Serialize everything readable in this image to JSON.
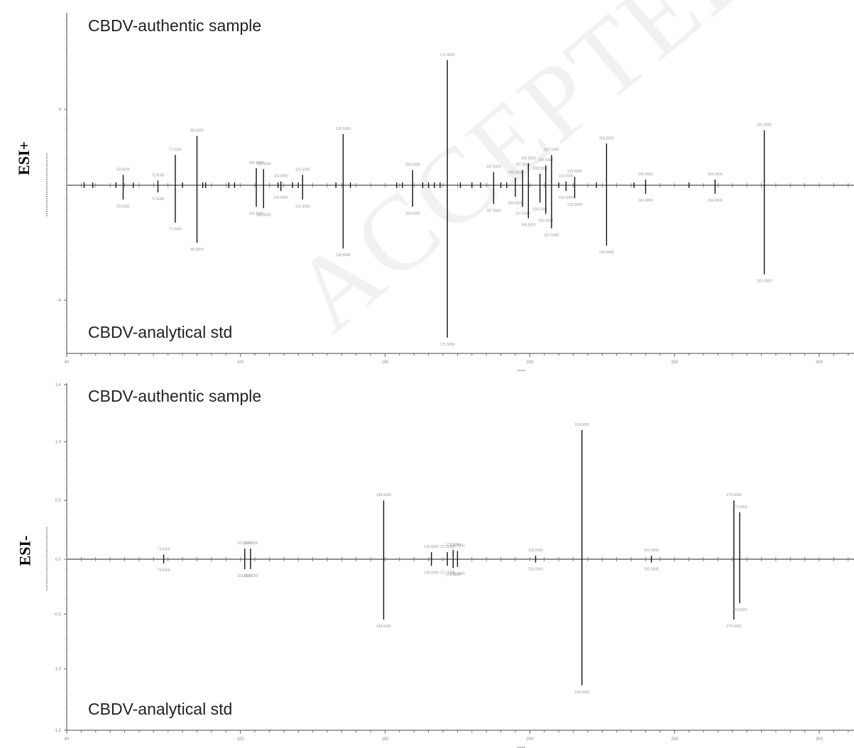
{
  "labels": {
    "esi_plus": "ESI+",
    "esi_minus": "ESI-"
  },
  "watermark": "ACCEPTED MANUSCRIPT",
  "chart_data": [
    {
      "type": "bar",
      "panel": "ESI+",
      "top_annotation": "CBDV-authentic sample",
      "bottom_annotation": "CBDV-analytical std",
      "xlim": [
        40,
        312
      ],
      "ylim": [
        -5.7,
        8.8
      ],
      "x_ticks": [
        40,
        100,
        150,
        200,
        250,
        300
      ],
      "y_ticks": [
        -4,
        4
      ],
      "peaks_sample": [
        {
          "x": 59.5,
          "y": 0.55
        },
        {
          "x": 71.5,
          "y": 0.25
        },
        {
          "x": 77.5,
          "y": 1.6
        },
        {
          "x": 85,
          "y": 2.6
        },
        {
          "x": 105.5,
          "y": 0.9
        },
        {
          "x": 108,
          "y": 0.85
        },
        {
          "x": 114,
          "y": 0.2
        },
        {
          "x": 121.5,
          "y": 0.55
        },
        {
          "x": 135.5,
          "y": 2.7
        },
        {
          "x": 159.5,
          "y": 0.8
        },
        {
          "x": 171.5,
          "y": 6.6
        },
        {
          "x": 187.5,
          "y": 0.7
        },
        {
          "x": 195,
          "y": 0.4
        },
        {
          "x": 197.5,
          "y": 0.8
        },
        {
          "x": 199.5,
          "y": 1.15
        },
        {
          "x": 203.5,
          "y": 0.6
        },
        {
          "x": 205.5,
          "y": 1.05
        },
        {
          "x": 207.5,
          "y": 1.6
        },
        {
          "x": 212.5,
          "y": 0.2
        },
        {
          "x": 215.5,
          "y": 0.45
        },
        {
          "x": 226.5,
          "y": 2.2
        },
        {
          "x": 240,
          "y": 0.3
        },
        {
          "x": 264,
          "y": 0.3
        },
        {
          "x": 281,
          "y": 2.9
        }
      ],
      "peaks_std": [
        {
          "x": 59.5,
          "y": -0.5
        },
        {
          "x": 71.5,
          "y": -0.25
        },
        {
          "x": 77.5,
          "y": -1.3
        },
        {
          "x": 85,
          "y": -2.0
        },
        {
          "x": 105.5,
          "y": -0.75
        },
        {
          "x": 108,
          "y": -0.8
        },
        {
          "x": 114,
          "y": -0.2
        },
        {
          "x": 121.5,
          "y": -0.5
        },
        {
          "x": 135.5,
          "y": -2.2
        },
        {
          "x": 159.5,
          "y": -0.75
        },
        {
          "x": 171.5,
          "y": -5.3
        },
        {
          "x": 187.5,
          "y": -0.65
        },
        {
          "x": 195,
          "y": -0.4
        },
        {
          "x": 197.5,
          "y": -0.75
        },
        {
          "x": 199.5,
          "y": -1.15
        },
        {
          "x": 203.5,
          "y": -0.6
        },
        {
          "x": 205.5,
          "y": -1.0
        },
        {
          "x": 207.5,
          "y": -1.5
        },
        {
          "x": 212.5,
          "y": -0.2
        },
        {
          "x": 215.5,
          "y": -0.45
        },
        {
          "x": 226.5,
          "y": -2.1
        },
        {
          "x": 240,
          "y": -0.3
        },
        {
          "x": 264,
          "y": -0.3
        },
        {
          "x": 281,
          "y": -3.1
        }
      ],
      "minor_peaks": [
        46,
        49,
        57,
        63,
        80,
        87,
        88,
        96,
        98,
        113,
        118,
        120,
        133,
        138,
        154,
        156,
        163,
        165,
        167,
        169,
        176,
        180,
        183,
        190,
        192,
        210,
        223,
        236,
        255
      ]
    },
    {
      "type": "bar",
      "panel": "ESI-",
      "top_annotation": "CBDV-authentic sample",
      "bottom_annotation": "CBDV-analytical std",
      "xlim": [
        40,
        312
      ],
      "ylim": [
        -1.52,
        1.45
      ],
      "x_ticks": [
        40,
        100,
        150,
        200,
        250,
        300
      ],
      "y_ticks": [
        1.4,
        1.0,
        0.5,
        0.0,
        -0.5,
        -1.0,
        -1.5
      ],
      "y_tick_labels": [
        "1.4",
        "1.0",
        "0.5",
        "0.0",
        "-0.5",
        "-1.0",
        "-1.5"
      ],
      "peaks_sample": [
        {
          "x": 73.5,
          "y": 0.04
        },
        {
          "x": 101.5,
          "y": 0.09
        },
        {
          "x": 103.5,
          "y": 0.09
        },
        {
          "x": 149.5,
          "y": 0.5
        },
        {
          "x": 166,
          "y": 0.06
        },
        {
          "x": 171.5,
          "y": 0.06
        },
        {
          "x": 173.5,
          "y": 0.08
        },
        {
          "x": 175,
          "y": 0.07
        },
        {
          "x": 202,
          "y": 0.03
        },
        {
          "x": 218,
          "y": 1.1
        },
        {
          "x": 242,
          "y": 0.03
        },
        {
          "x": 270.5,
          "y": 0.5
        },
        {
          "x": 272.5,
          "y": 0.4
        }
      ],
      "peaks_std": [
        {
          "x": 73.5,
          "y": -0.04
        },
        {
          "x": 101.5,
          "y": -0.09
        },
        {
          "x": 103.5,
          "y": -0.09
        },
        {
          "x": 149.5,
          "y": -0.55
        },
        {
          "x": 166,
          "y": -0.06
        },
        {
          "x": 171.5,
          "y": -0.06
        },
        {
          "x": 173.5,
          "y": -0.08
        },
        {
          "x": 175,
          "y": -0.07
        },
        {
          "x": 202,
          "y": -0.03
        },
        {
          "x": 218,
          "y": -1.15
        },
        {
          "x": 242,
          "y": -0.03
        },
        {
          "x": 270.5,
          "y": -0.55
        },
        {
          "x": 272.5,
          "y": -0.4
        }
      ]
    }
  ]
}
